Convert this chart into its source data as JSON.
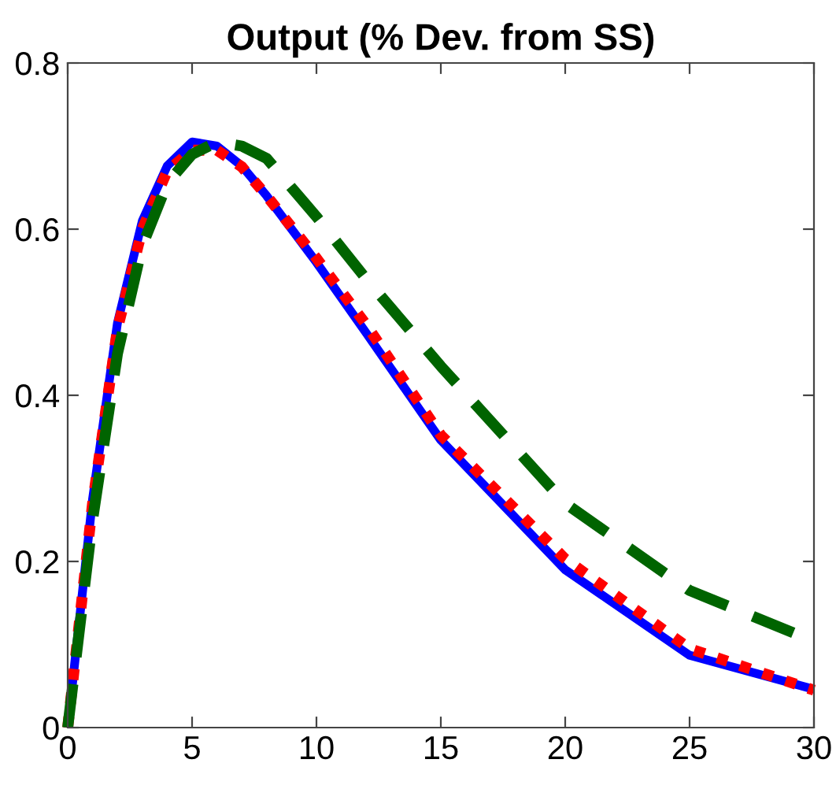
{
  "chart_data": {
    "type": "line",
    "title": "Output (% Dev. from SS)",
    "x": [
      0,
      1,
      2,
      3,
      4,
      5,
      6,
      7,
      8,
      10,
      12,
      15,
      20,
      25,
      30
    ],
    "series": [
      {
        "color": "#0000ff",
        "line_style": "solid",
        "values": [
          0,
          0.275,
          0.487,
          0.61,
          0.676,
          0.705,
          0.7,
          0.676,
          0.64,
          0.56,
          0.475,
          0.346,
          0.19,
          0.087,
          0.046
        ]
      },
      {
        "color": "#ff0000",
        "line_style": "dotted",
        "values": [
          0,
          0.27,
          0.48,
          0.6,
          0.67,
          0.695,
          0.695,
          0.675,
          0.64,
          0.565,
          0.485,
          0.352,
          0.203,
          0.095,
          0.045
        ]
      },
      {
        "color": "#006400",
        "line_style": "dashed",
        "values": [
          0,
          0.25,
          0.45,
          0.58,
          0.655,
          0.69,
          0.705,
          0.7,
          0.685,
          0.615,
          0.54,
          0.435,
          0.27,
          0.165,
          0.104
        ]
      }
    ],
    "xlim": [
      0,
      30
    ],
    "xticks": [
      0,
      5,
      10,
      15,
      20,
      25,
      30
    ],
    "ylim": [
      0,
      0.8
    ],
    "yticks": [
      {
        "value": 0,
        "label": "0"
      },
      0.2,
      0.4,
      0.6,
      0.8
    ],
    "grid": false,
    "legend": false
  }
}
